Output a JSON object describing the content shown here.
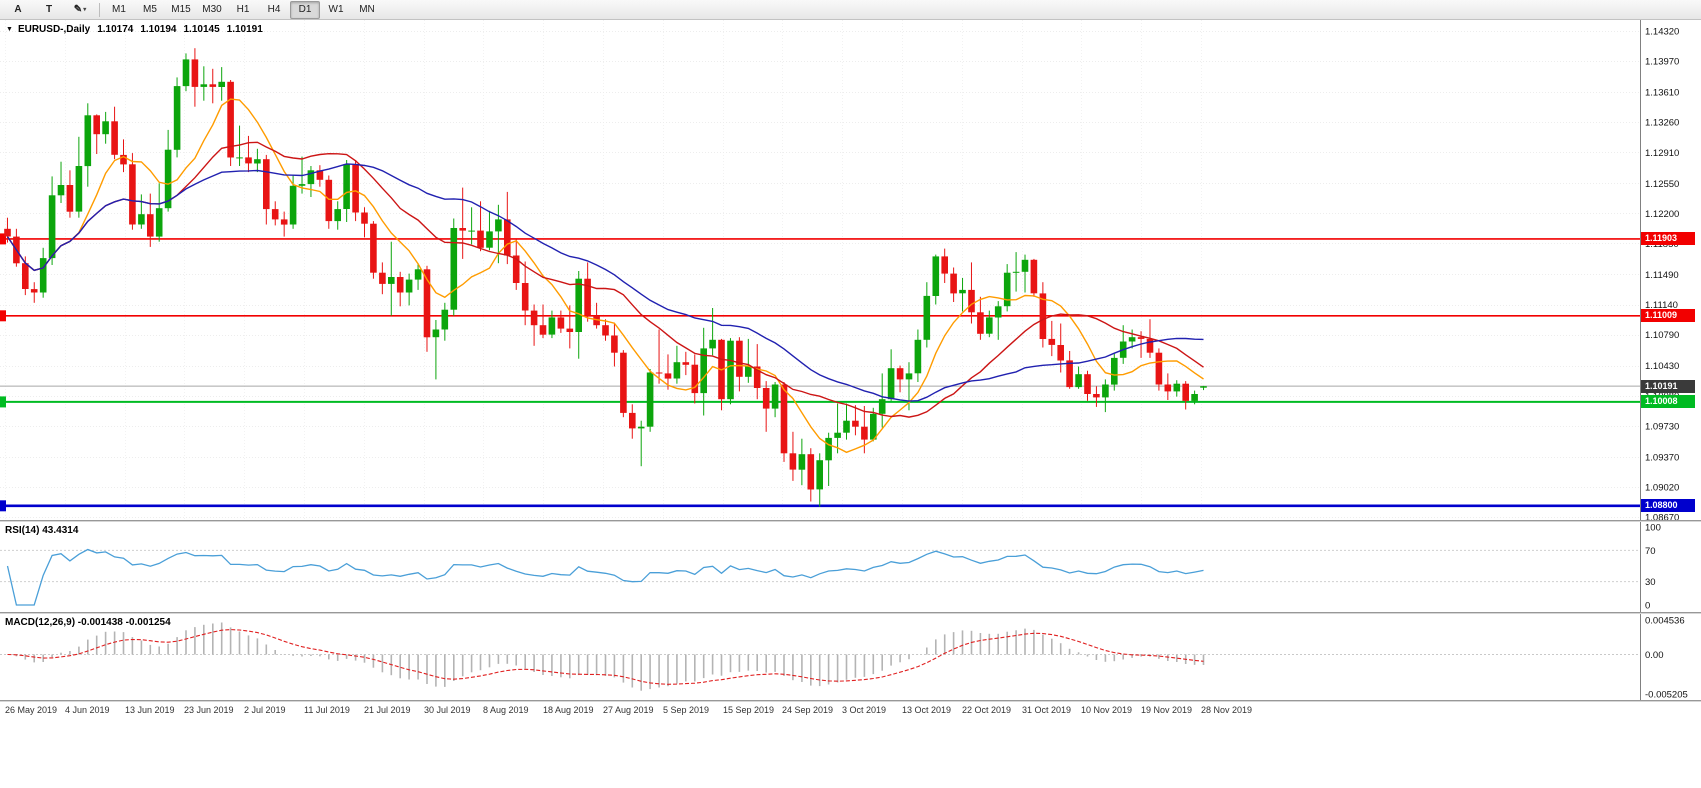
{
  "toolbar": {
    "buttons": [
      {
        "label": "A",
        "name": "text-tool-button"
      },
      {
        "label": "T",
        "name": "type-tool-button"
      },
      {
        "label": "✎",
        "caret": "▾",
        "name": "draw-tool-button"
      }
    ],
    "timeframes": [
      "M1",
      "M5",
      "M15",
      "M30",
      "H1",
      "H4",
      "D1",
      "W1",
      "MN"
    ],
    "active_timeframe": "D1"
  },
  "main_chart": {
    "dropdown_icon": "▼",
    "symbol": "EURUSD-,Daily",
    "open": "1.10174",
    "high": "1.10194",
    "low": "1.10145",
    "close": "1.10191"
  },
  "hlines": [
    {
      "label": "1.11903",
      "price": 1.11903,
      "color": "#f20000",
      "thickness": 1.6,
      "name": "resistance-line-11903"
    },
    {
      "label": "1.11009",
      "price": 1.11009,
      "color": "#f20000",
      "thickness": 1.6,
      "name": "resistance-line-11009"
    },
    {
      "label": "1.10008",
      "price": 1.10008,
      "color": "#00bb22",
      "thickness": 2,
      "name": "support-line-10008"
    },
    {
      "label": "1.08800",
      "price": 1.088,
      "color": "#0000cd",
      "thickness": 2.6,
      "name": "support-line-10880"
    }
  ],
  "current_price": {
    "label": "1.10191",
    "price": 1.10191,
    "badge_color": "#3a3a3a",
    "line_color": "#a8a8a8"
  },
  "rsi_panel": {
    "title": "RSI(14) 43.4314",
    "period": 14,
    "value": 43.4314,
    "line_color": "#4a9fd8",
    "levels": [
      70,
      30
    ],
    "axis_labels": [
      {
        "v": 100,
        "t": "100"
      },
      {
        "v": 70,
        "t": "70"
      },
      {
        "v": 30,
        "t": "30"
      },
      {
        "v": 0,
        "t": "0"
      }
    ]
  },
  "macd_panel": {
    "title": "MACD(12,26,9) -0.001438 -0.001254",
    "fast": 12,
    "slow": 26,
    "signal_period": 9,
    "macd_value": -0.001438,
    "signal_value": -0.001254,
    "ylim": [
      -0.005205,
      0.004536
    ],
    "axis_top": "0.004536",
    "axis_zero": "0.00",
    "axis_bottom": "-0.005205"
  },
  "colors": {
    "candle_up": "#0ca50c",
    "candle_down": "#e81414",
    "macd_histogram": "#b4b4b4",
    "macd_signal": "#e02020"
  },
  "chart_data": {
    "type": "candlestick",
    "symbol": "EURUSD",
    "timeframe": "Daily",
    "ylim": [
      1.0867,
      1.1432
    ],
    "y_tick_labels": [
      "1.14320",
      "1.13970",
      "1.13610",
      "1.13260",
      "1.12910",
      "1.12550",
      "1.12200",
      "1.11850",
      "1.11490",
      "1.11140",
      "1.10790",
      "1.10430",
      "1.10080",
      "1.09730",
      "1.09370",
      "1.09020",
      "1.08670"
    ],
    "x_tick_labels": [
      "26 May 2019",
      "4 Jun 2019",
      "13 Jun 2019",
      "23 Jun 2019",
      "2 Jul 2019",
      "11 Jul 2019",
      "21 Jul 2019",
      "30 Jul 2019",
      "8 Aug 2019",
      "18 Aug 2019",
      "27 Aug 2019",
      "5 Sep 2019",
      "15 Sep 2019",
      "24 Sep 2019",
      "3 Oct 2019",
      "13 Oct 2019",
      "22 Oct 2019",
      "31 Oct 2019",
      "10 Nov 2019",
      "19 Nov 2019",
      "28 Nov 2019"
    ],
    "overlays": {
      "ma_fast_period": 8,
      "ma_fast_color": "#ff9c00",
      "ma_mid_period": 20,
      "ma_mid_color": "#cc1515",
      "ma_slow_period": 34,
      "ma_slow_color": "#2121b0"
    },
    "candles": [
      [
        1.1202,
        1.1215,
        1.1186,
        1.1193
      ],
      [
        1.1193,
        1.1202,
        1.1158,
        1.1162
      ],
      [
        1.1162,
        1.117,
        1.1125,
        1.1132
      ],
      [
        1.1132,
        1.114,
        1.1116,
        1.1128
      ],
      [
        1.1128,
        1.118,
        1.1122,
        1.1168
      ],
      [
        1.1168,
        1.1263,
        1.116,
        1.1241
      ],
      [
        1.1241,
        1.128,
        1.1232,
        1.1253
      ],
      [
        1.1253,
        1.127,
        1.1215,
        1.1222
      ],
      [
        1.1222,
        1.1309,
        1.1215,
        1.1275
      ],
      [
        1.1275,
        1.1348,
        1.1251,
        1.1334
      ],
      [
        1.1334,
        1.1335,
        1.1289,
        1.1312
      ],
      [
        1.1312,
        1.1338,
        1.1301,
        1.1327
      ],
      [
        1.1327,
        1.1344,
        1.1283,
        1.1288
      ],
      [
        1.1288,
        1.1306,
        1.1268,
        1.1277
      ],
      [
        1.1277,
        1.129,
        1.1201,
        1.1207
      ],
      [
        1.1207,
        1.1242,
        1.1202,
        1.1219
      ],
      [
        1.1219,
        1.1243,
        1.1181,
        1.1193
      ],
      [
        1.1193,
        1.1255,
        1.1187,
        1.1226
      ],
      [
        1.1226,
        1.1317,
        1.1222,
        1.1294
      ],
      [
        1.1294,
        1.1378,
        1.1285,
        1.1368
      ],
      [
        1.1368,
        1.1406,
        1.1362,
        1.1399
      ],
      [
        1.1399,
        1.1412,
        1.1344,
        1.1367
      ],
      [
        1.1367,
        1.1391,
        1.1351,
        1.137
      ],
      [
        1.137,
        1.1388,
        1.1348,
        1.1367
      ],
      [
        1.1367,
        1.139,
        1.1351,
        1.1373
      ],
      [
        1.1373,
        1.1375,
        1.1275,
        1.1285
      ],
      [
        1.1285,
        1.1322,
        1.1275,
        1.1285
      ],
      [
        1.1285,
        1.131,
        1.1268,
        1.1278
      ],
      [
        1.1278,
        1.1295,
        1.1268,
        1.1283
      ],
      [
        1.1283,
        1.1288,
        1.1207,
        1.1225
      ],
      [
        1.1225,
        1.1234,
        1.1206,
        1.1213
      ],
      [
        1.1213,
        1.1222,
        1.1193,
        1.1207
      ],
      [
        1.1207,
        1.1264,
        1.1202,
        1.1252
      ],
      [
        1.1252,
        1.1286,
        1.1243,
        1.1254
      ],
      [
        1.1254,
        1.1275,
        1.1239,
        1.127
      ],
      [
        1.127,
        1.1276,
        1.1251,
        1.1259
      ],
      [
        1.1259,
        1.1264,
        1.1202,
        1.1211
      ],
      [
        1.1211,
        1.1234,
        1.1201,
        1.1225
      ],
      [
        1.1225,
        1.1282,
        1.121,
        1.1277
      ],
      [
        1.1277,
        1.1282,
        1.1211,
        1.1221
      ],
      [
        1.1221,
        1.1227,
        1.1192,
        1.1208
      ],
      [
        1.1208,
        1.1211,
        1.1144,
        1.1151
      ],
      [
        1.1151,
        1.1163,
        1.1126,
        1.1138
      ],
      [
        1.1138,
        1.1187,
        1.1101,
        1.1146
      ],
      [
        1.1146,
        1.1152,
        1.1112,
        1.1128
      ],
      [
        1.1128,
        1.115,
        1.1113,
        1.1143
      ],
      [
        1.1143,
        1.1162,
        1.1131,
        1.1155
      ],
      [
        1.1155,
        1.1159,
        1.1059,
        1.1076
      ],
      [
        1.1076,
        1.1096,
        1.1027,
        1.1085
      ],
      [
        1.1085,
        1.1116,
        1.1072,
        1.1108
      ],
      [
        1.1108,
        1.1214,
        1.1101,
        1.1203
      ],
      [
        1.1203,
        1.125,
        1.1167,
        1.12
      ],
      [
        1.12,
        1.1227,
        1.1184,
        1.12
      ],
      [
        1.12,
        1.1234,
        1.1176,
        1.118
      ],
      [
        1.118,
        1.1223,
        1.1177,
        1.1199
      ],
      [
        1.1199,
        1.123,
        1.1162,
        1.1213
      ],
      [
        1.1213,
        1.1245,
        1.1161,
        1.1171
      ],
      [
        1.1171,
        1.119,
        1.1131,
        1.1139
      ],
      [
        1.1139,
        1.1164,
        1.109,
        1.1107
      ],
      [
        1.1107,
        1.1114,
        1.1066,
        1.109
      ],
      [
        1.109,
        1.1114,
        1.1075,
        1.1079
      ],
      [
        1.1079,
        1.1107,
        1.1075,
        1.1099
      ],
      [
        1.1099,
        1.1107,
        1.1081,
        1.1086
      ],
      [
        1.1086,
        1.1113,
        1.1063,
        1.1082
      ],
      [
        1.1082,
        1.1153,
        1.1051,
        1.1144
      ],
      [
        1.1144,
        1.1163,
        1.1094,
        1.1101
      ],
      [
        1.1101,
        1.1116,
        1.1086,
        1.109
      ],
      [
        1.109,
        1.1097,
        1.1072,
        1.1078
      ],
      [
        1.1078,
        1.1093,
        1.1042,
        1.1058
      ],
      [
        1.1058,
        1.1061,
        1.0983,
        1.0988
      ],
      [
        1.0988,
        1.0998,
        1.0958,
        1.097
      ],
      [
        1.097,
        1.0979,
        1.0926,
        1.0972
      ],
      [
        1.0972,
        1.1039,
        1.0966,
        1.1035
      ],
      [
        1.1035,
        1.1085,
        1.1022,
        1.1034
      ],
      [
        1.1034,
        1.1056,
        1.1015,
        1.1028
      ],
      [
        1.1028,
        1.1066,
        1.1022,
        1.1047
      ],
      [
        1.1047,
        1.1059,
        1.1032,
        1.1044
      ],
      [
        1.1044,
        1.1056,
        1.0999,
        1.1011
      ],
      [
        1.1011,
        1.1087,
        1.0985,
        1.1063
      ],
      [
        1.1063,
        1.111,
        1.1055,
        1.1073
      ],
      [
        1.1073,
        1.1074,
        1.0991,
        1.1004
      ],
      [
        1.1004,
        1.1075,
        1.0998,
        1.1072
      ],
      [
        1.1072,
        1.1076,
        1.1013,
        1.103
      ],
      [
        1.103,
        1.1074,
        1.1023,
        1.1042
      ],
      [
        1.1042,
        1.1068,
        1.1004,
        1.1017
      ],
      [
        1.1017,
        1.1025,
        1.0966,
        1.0993
      ],
      [
        1.0993,
        1.1024,
        1.0983,
        1.1021
      ],
      [
        1.1021,
        1.1024,
        1.0931,
        1.0941
      ],
      [
        1.0941,
        1.0966,
        1.0909,
        1.0922
      ],
      [
        1.0922,
        1.0958,
        1.0904,
        1.094
      ],
      [
        1.094,
        1.0947,
        1.0885,
        1.0899
      ],
      [
        1.0899,
        1.0941,
        1.0879,
        1.0933
      ],
      [
        1.0933,
        1.0965,
        1.0903,
        1.0959
      ],
      [
        1.0959,
        1.0999,
        1.0941,
        1.0965
      ],
      [
        1.0965,
        1.0999,
        1.0957,
        1.0979
      ],
      [
        1.0979,
        1.0997,
        1.0962,
        1.0972
      ],
      [
        1.0972,
        1.0996,
        1.0941,
        1.0957
      ],
      [
        1.0957,
        1.0994,
        1.0955,
        1.0987
      ],
      [
        1.0987,
        1.1034,
        1.0971,
        1.1004
      ],
      [
        1.1004,
        1.1062,
        1.1002,
        1.104
      ],
      [
        1.104,
        1.1043,
        1.1012,
        1.1027
      ],
      [
        1.1027,
        1.1047,
        1.0991,
        1.1034
      ],
      [
        1.1034,
        1.1085,
        1.1024,
        1.1073
      ],
      [
        1.1073,
        1.114,
        1.1064,
        1.1124
      ],
      [
        1.1124,
        1.1172,
        1.1114,
        1.117
      ],
      [
        1.117,
        1.1179,
        1.1139,
        1.115
      ],
      [
        1.115,
        1.1157,
        1.1117,
        1.1127
      ],
      [
        1.1127,
        1.1145,
        1.1106,
        1.1131
      ],
      [
        1.1131,
        1.1163,
        1.1092,
        1.1105
      ],
      [
        1.1105,
        1.1123,
        1.1073,
        1.108
      ],
      [
        1.108,
        1.1107,
        1.1076,
        1.1099
      ],
      [
        1.1099,
        1.1118,
        1.1073,
        1.1112
      ],
      [
        1.1112,
        1.1161,
        1.1106,
        1.1151
      ],
      [
        1.1151,
        1.1175,
        1.1129,
        1.1152
      ],
      [
        1.1152,
        1.1172,
        1.1128,
        1.1166
      ],
      [
        1.1166,
        1.1167,
        1.1123,
        1.1127
      ],
      [
        1.1127,
        1.114,
        1.1064,
        1.1074
      ],
      [
        1.1074,
        1.1095,
        1.1054,
        1.1067
      ],
      [
        1.1067,
        1.1092,
        1.1035,
        1.1049
      ],
      [
        1.1049,
        1.106,
        1.1016,
        1.1018
      ],
      [
        1.1018,
        1.1042,
        1.1016,
        1.1033
      ],
      [
        1.1033,
        1.1037,
        1.1002,
        1.101
      ],
      [
        1.101,
        1.1019,
        1.0995,
        1.1006
      ],
      [
        1.1006,
        1.1027,
        1.0989,
        1.1021
      ],
      [
        1.1021,
        1.1057,
        1.1014,
        1.1052
      ],
      [
        1.1052,
        1.109,
        1.1045,
        1.1071
      ],
      [
        1.1071,
        1.1085,
        1.1063,
        1.1076
      ],
      [
        1.1076,
        1.1083,
        1.1052,
        1.1074
      ],
      [
        1.1074,
        1.1097,
        1.1052,
        1.1058
      ],
      [
        1.1058,
        1.1063,
        1.1014,
        1.1021
      ],
      [
        1.1021,
        1.1034,
        1.1003,
        1.1013
      ],
      [
        1.1013,
        1.1026,
        1.1007,
        1.1022
      ],
      [
        1.1022,
        1.1025,
        1.0992,
        1.1002
      ],
      [
        1.1002,
        1.1014,
        1.0998,
        1.101
      ],
      [
        1.10174,
        1.10194,
        1.10145,
        1.10191
      ]
    ]
  }
}
